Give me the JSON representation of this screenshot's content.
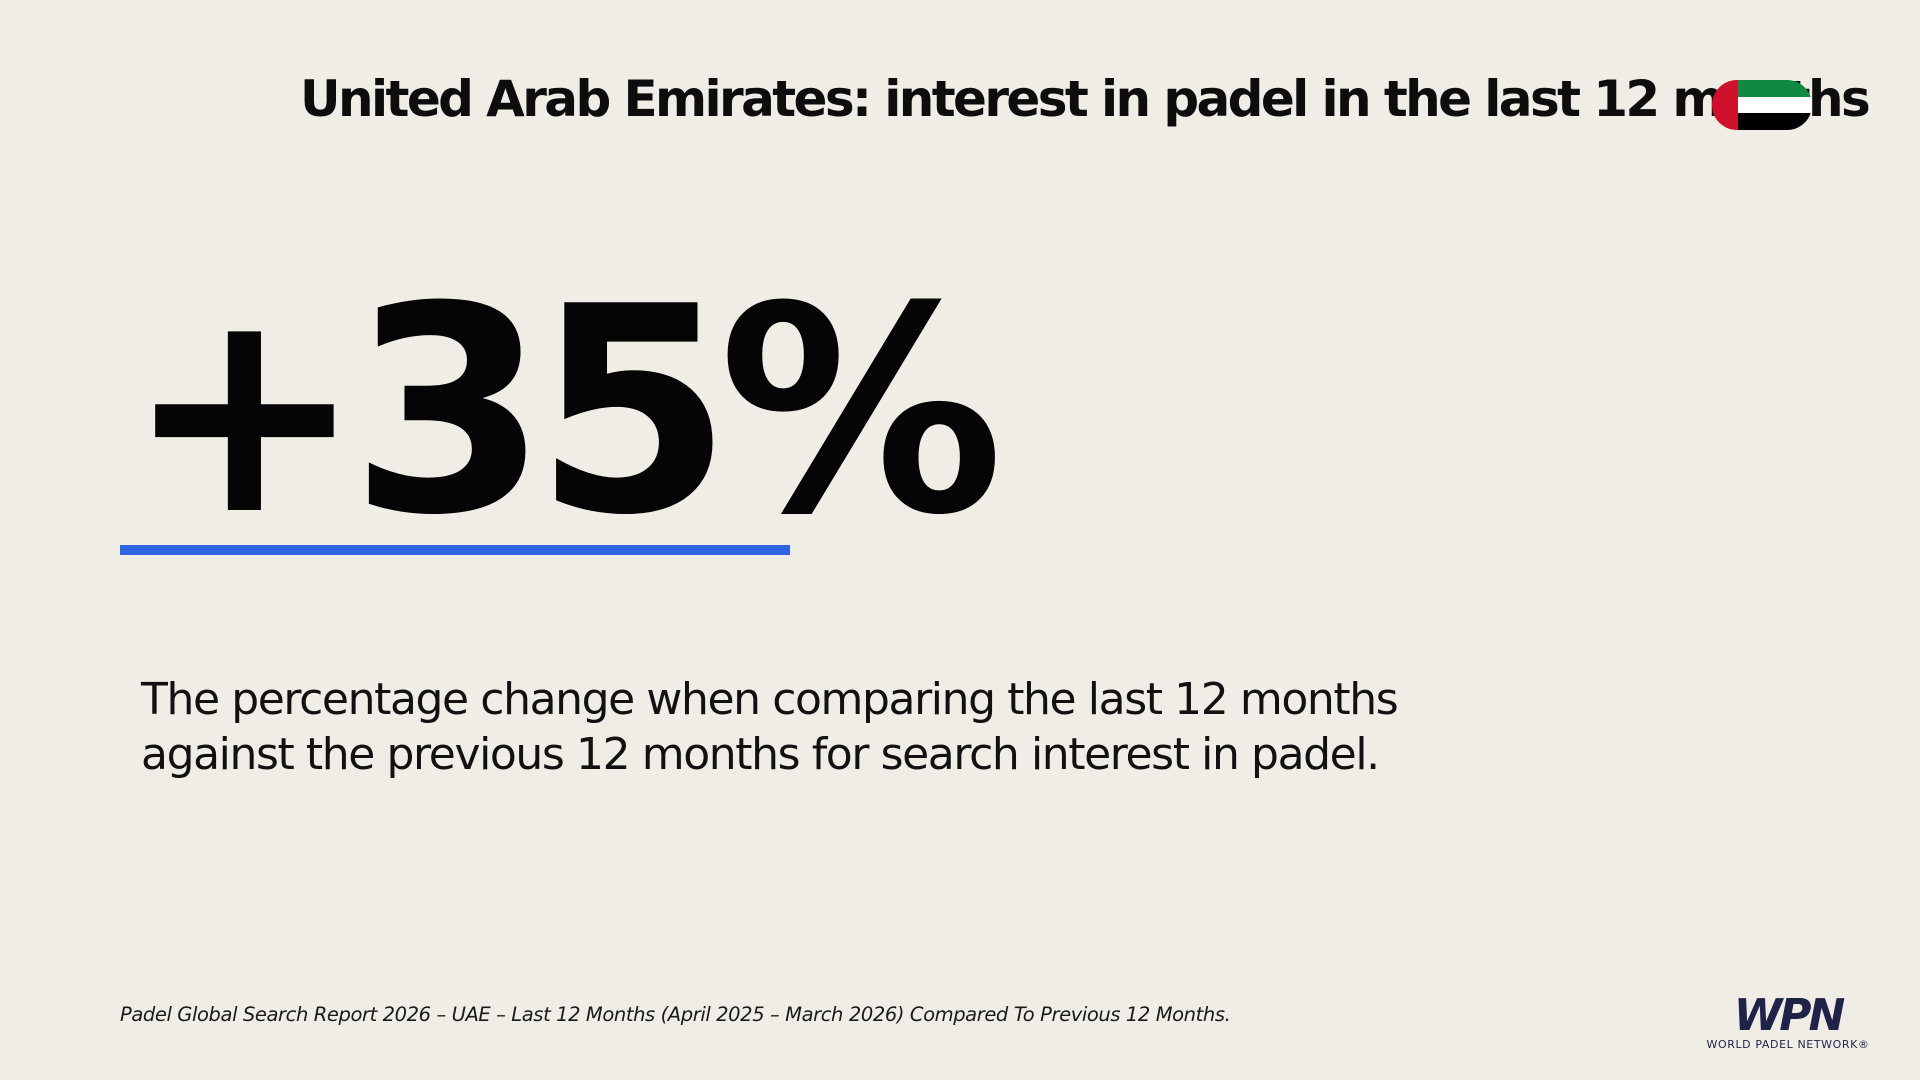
{
  "header": {
    "title": "United Arab Emirates: interest in padel in the last 12 months",
    "flag": {
      "icon": "uae-flag-icon",
      "colors": {
        "red": "#d0112b",
        "green": "#0f8a43",
        "white": "#ffffff",
        "black": "#000000"
      }
    }
  },
  "main": {
    "stat_value": "+35%",
    "accent_color": "#2f63e0",
    "description_lines": [
      "The percentage change when comparing the last 12 months",
      "against the previous 12 months for search interest in padel."
    ]
  },
  "footer": {
    "source_note": "Padel Global Search Report 2026 – UAE – Last 12 Months (April 2025 – March 2026) Compared To Previous 12 Months.",
    "logo": {
      "mark": "WPN",
      "name": "WORLD PADEL NETWORK®",
      "color": "#1e2347"
    }
  }
}
